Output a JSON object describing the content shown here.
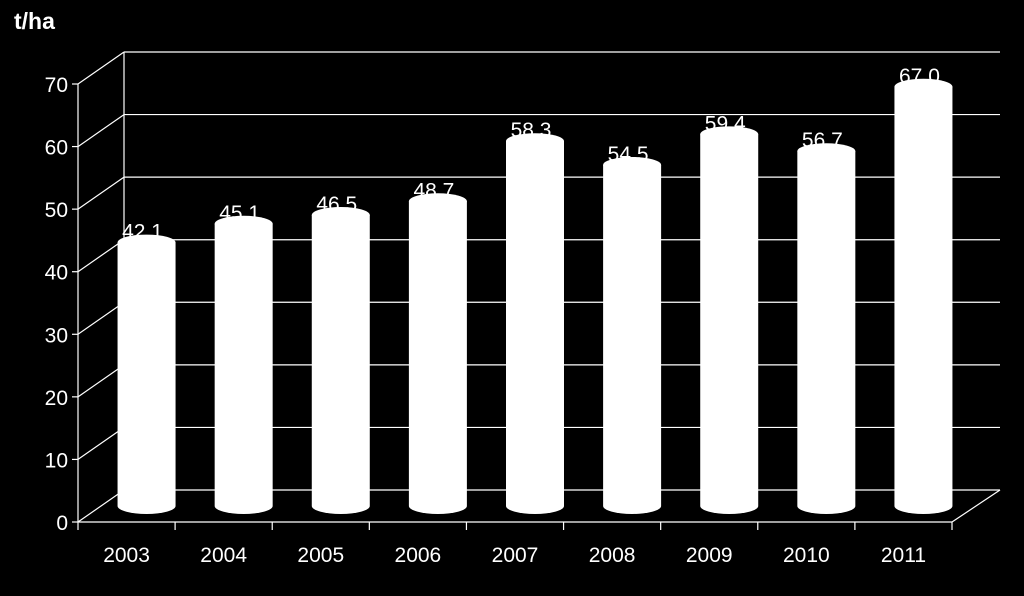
{
  "chart_data": {
    "type": "bar",
    "style": "3d-cylinder",
    "ylabel": "t/ha",
    "categories": [
      "2003",
      "2004",
      "2005",
      "2006",
      "2007",
      "2008",
      "2009",
      "2010",
      "2011"
    ],
    "values": [
      42.1,
      45.1,
      46.5,
      48.7,
      58.3,
      54.5,
      59.4,
      56.7,
      67.0
    ],
    "data_labels": [
      "42.1",
      "45.1",
      "46.5",
      "48.7",
      "58.3",
      "54.5",
      "59.4",
      "56.7",
      "67.0"
    ],
    "ylim": [
      0,
      70
    ],
    "yticks": [
      "0",
      "10",
      "20",
      "30",
      "40",
      "50",
      "60",
      "70"
    ],
    "grid": true,
    "colors": {
      "background": "#000000",
      "bar": "#ffffff",
      "grid": "#ffffff",
      "text": "#ffffff"
    }
  }
}
